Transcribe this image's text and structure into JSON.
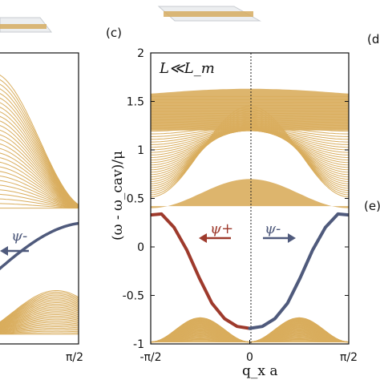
{
  "chart_data": {
    "type": "line",
    "panel_labels": {
      "left_partial": "",
      "main": "(c)",
      "right_top": "(d",
      "right_bottom": "(e)"
    },
    "annotation": "L≪L_m",
    "xlabel": "q_x a",
    "ylabel": "(ω - ω_cav)/μ",
    "xlim": [
      -1.5708,
      1.5708
    ],
    "ylim": [
      -1,
      2
    ],
    "x_ticks": [
      "-π/2",
      "0",
      "π/2"
    ],
    "y_ticks": [
      "-1",
      "-0.5",
      "0",
      "0.5",
      "1",
      "1.5",
      "2"
    ],
    "left_panel_x_tick": "π/2",
    "series": [
      {
        "name": "ψ+",
        "color": "#9e3a2c",
        "x": [
          -1.5708,
          -1.4,
          -1.2,
          -1.0,
          -0.8,
          -0.6,
          -0.4,
          -0.2,
          0.0
        ],
        "y": [
          0.33,
          0.34,
          0.2,
          -0.03,
          -0.32,
          -0.58,
          -0.74,
          -0.82,
          -0.84
        ]
      },
      {
        "name": "ψ-",
        "color": "#4f5a7c",
        "x": [
          0.0,
          0.2,
          0.4,
          0.6,
          0.8,
          1.0,
          1.2,
          1.4,
          1.5708
        ],
        "y": [
          -0.84,
          -0.82,
          -0.74,
          -0.58,
          -0.32,
          -0.03,
          0.2,
          0.34,
          0.33
        ]
      }
    ],
    "bands": [
      {
        "name": "upper band",
        "color": "#d9ad5d",
        "y_range": [
          0.35,
          1.6
        ]
      },
      {
        "name": "lower band",
        "color": "#d9ad5d",
        "y_range": [
          -1.0,
          0.3
        ]
      }
    ],
    "left_panel": {
      "edge_state": "ψ-",
      "edge_color": "#4f5a7c"
    }
  }
}
